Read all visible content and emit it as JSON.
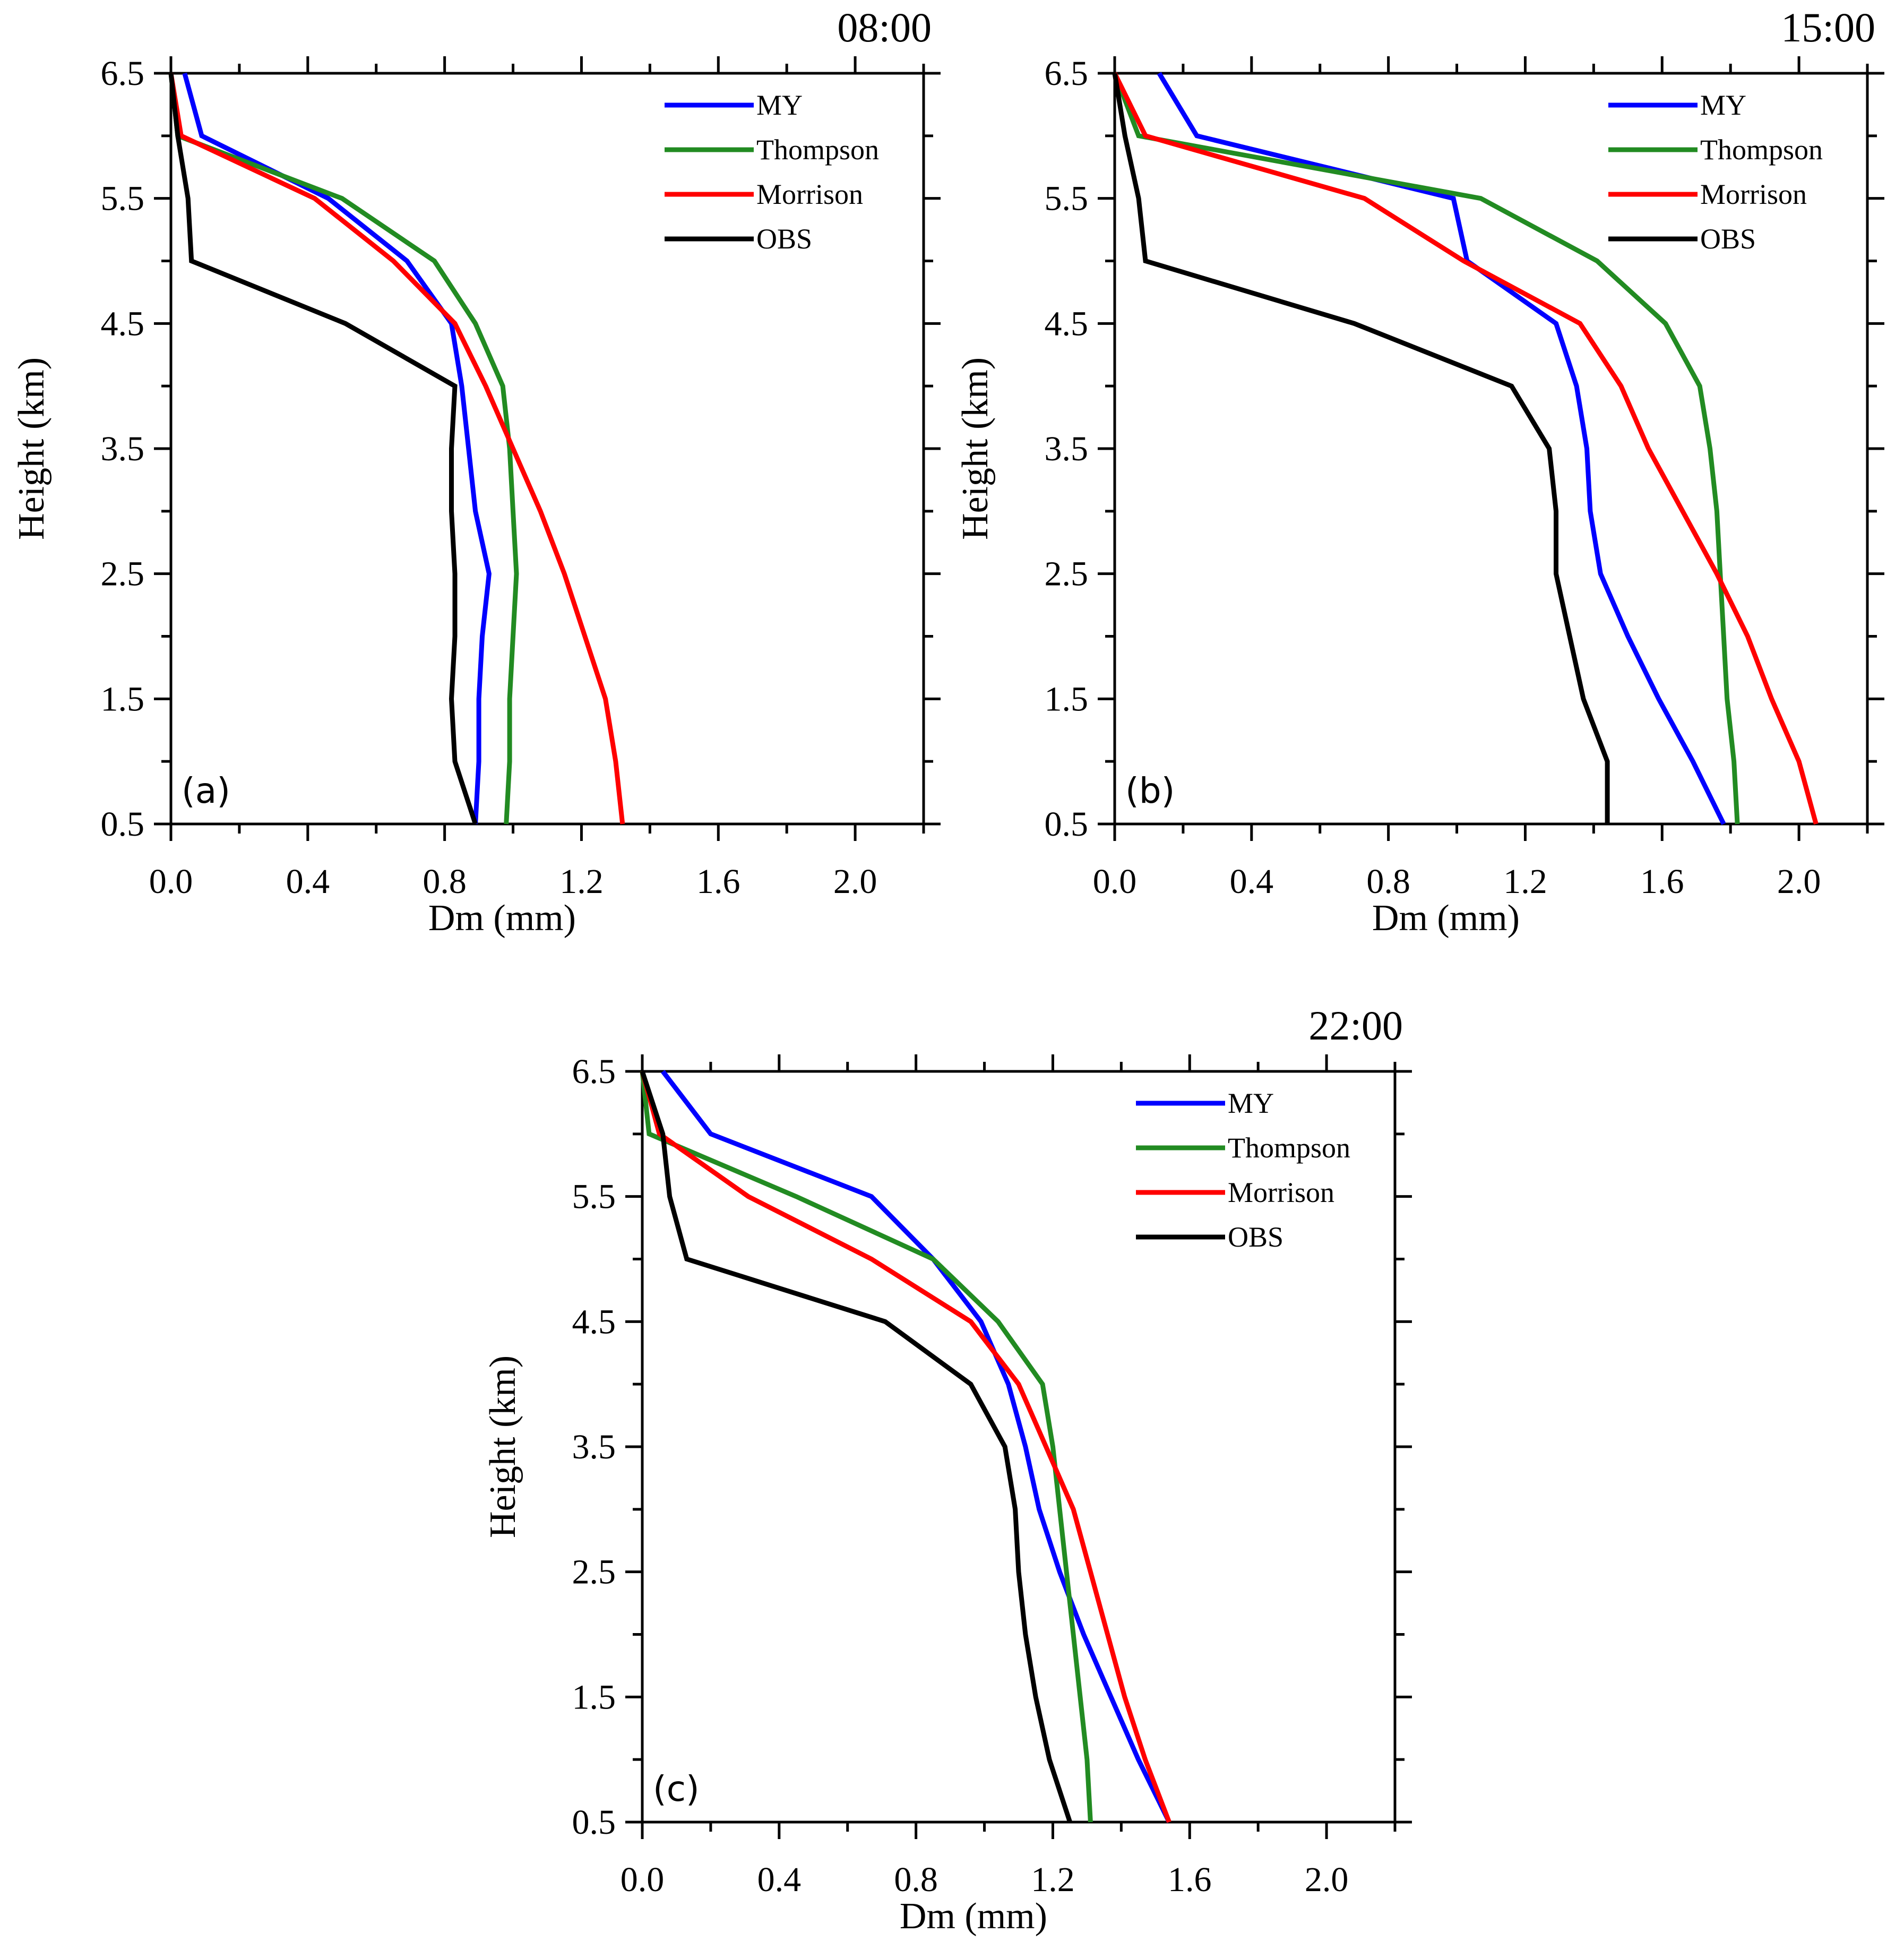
{
  "chart_data": [
    {
      "type": "line",
      "panel_label": "(a)",
      "time": "08:00",
      "xlabel": "Dm (mm)",
      "ylabel": "Height (km)",
      "xlim": [
        0,
        2.2
      ],
      "ylim": [
        0.5,
        6.5
      ],
      "xticks": [
        "0.0",
        "0.4",
        "0.8",
        "1.2",
        "1.6",
        "2.0"
      ],
      "yticks": [
        "0.5",
        "1.5",
        "2.5",
        "3.5",
        "4.5",
        "5.5",
        "6.5"
      ],
      "legend_position": "top-right",
      "y": [
        0.5,
        1.0,
        1.5,
        2.0,
        2.5,
        3.0,
        3.5,
        4.0,
        4.5,
        5.0,
        5.5,
        6.0,
        6.5
      ],
      "series": [
        {
          "name": "MY",
          "color": "#0000ff",
          "values": [
            0.89,
            0.9,
            0.9,
            0.91,
            0.93,
            0.89,
            0.87,
            0.85,
            0.82,
            0.69,
            0.46,
            0.09,
            0.04
          ]
        },
        {
          "name": "Thompson",
          "color": "#228b22",
          "values": [
            0.98,
            0.99,
            0.99,
            1.0,
            1.01,
            1.0,
            0.99,
            0.97,
            0.89,
            0.77,
            0.5,
            0.02,
            0.0
          ]
        },
        {
          "name": "Morrison",
          "color": "#ff0000",
          "values": [
            1.32,
            1.3,
            1.27,
            1.21,
            1.15,
            1.08,
            1.0,
            0.92,
            0.83,
            0.65,
            0.42,
            0.03,
            0.0
          ]
        },
        {
          "name": "OBS",
          "color": "#000000",
          "values": [
            0.89,
            0.83,
            0.82,
            0.83,
            0.83,
            0.82,
            0.82,
            0.83,
            0.51,
            0.06,
            0.05,
            0.02,
            0.0
          ]
        }
      ]
    },
    {
      "type": "line",
      "panel_label": "(b)",
      "time": "15:00",
      "xlabel": "Dm (mm)",
      "ylabel": "Height (km)",
      "xlim": [
        0,
        2.2
      ],
      "ylim": [
        0.5,
        6.5
      ],
      "xticks": [
        "0.0",
        "0.4",
        "0.8",
        "1.2",
        "1.6",
        "2.0"
      ],
      "yticks": [
        "0.5",
        "1.5",
        "2.5",
        "3.5",
        "4.5",
        "5.5",
        "6.5"
      ],
      "legend_position": "top-right",
      "y": [
        0.5,
        1.0,
        1.5,
        2.0,
        2.5,
        3.0,
        3.5,
        4.0,
        4.5,
        5.0,
        5.5,
        6.0,
        6.5
      ],
      "series": [
        {
          "name": "MY",
          "color": "#0000ff",
          "values": [
            1.78,
            1.69,
            1.59,
            1.5,
            1.42,
            1.39,
            1.38,
            1.35,
            1.29,
            1.03,
            0.99,
            0.24,
            0.13
          ]
        },
        {
          "name": "Thompson",
          "color": "#228b22",
          "values": [
            1.82,
            1.81,
            1.79,
            1.78,
            1.77,
            1.76,
            1.74,
            1.71,
            1.61,
            1.41,
            1.07,
            0.07,
            0.0
          ]
        },
        {
          "name": "Morrison",
          "color": "#ff0000",
          "values": [
            2.05,
            2.0,
            1.92,
            1.85,
            1.76,
            1.66,
            1.56,
            1.48,
            1.36,
            1.02,
            0.73,
            0.09,
            0.0
          ]
        },
        {
          "name": "OBS",
          "color": "#000000",
          "values": [
            1.44,
            1.44,
            1.37,
            1.33,
            1.29,
            1.29,
            1.27,
            1.16,
            0.7,
            0.09,
            0.07,
            0.03,
            0.0
          ]
        }
      ]
    },
    {
      "type": "line",
      "panel_label": "(c)",
      "time": "22:00",
      "xlabel": "Dm (mm)",
      "ylabel": "Height (km)",
      "xlim": [
        0,
        2.2
      ],
      "ylim": [
        0.5,
        6.5
      ],
      "xticks": [
        "0.0",
        "0.4",
        "0.8",
        "1.2",
        "1.6",
        "2.0"
      ],
      "yticks": [
        "0.5",
        "1.5",
        "2.5",
        "3.5",
        "4.5",
        "5.5",
        "6.5"
      ],
      "legend_position": "top-right",
      "y": [
        0.5,
        1.0,
        1.5,
        2.0,
        2.5,
        3.0,
        3.5,
        4.0,
        4.5,
        5.0,
        5.5,
        6.0,
        6.5
      ],
      "series": [
        {
          "name": "MY",
          "color": "#0000ff",
          "values": [
            1.54,
            1.45,
            1.37,
            1.29,
            1.22,
            1.16,
            1.12,
            1.07,
            0.99,
            0.85,
            0.67,
            0.2,
            0.06
          ]
        },
        {
          "name": "Thompson",
          "color": "#228b22",
          "values": [
            1.31,
            1.3,
            1.28,
            1.26,
            1.24,
            1.22,
            1.2,
            1.17,
            1.04,
            0.85,
            0.45,
            0.02,
            0.0
          ]
        },
        {
          "name": "Morrison",
          "color": "#ff0000",
          "values": [
            1.54,
            1.47,
            1.41,
            1.36,
            1.31,
            1.26,
            1.18,
            1.1,
            0.96,
            0.67,
            0.31,
            0.05,
            0.0
          ]
        },
        {
          "name": "OBS",
          "color": "#000000",
          "values": [
            1.25,
            1.19,
            1.15,
            1.12,
            1.1,
            1.09,
            1.06,
            0.96,
            0.71,
            0.13,
            0.08,
            0.06,
            0.0
          ]
        }
      ]
    }
  ]
}
